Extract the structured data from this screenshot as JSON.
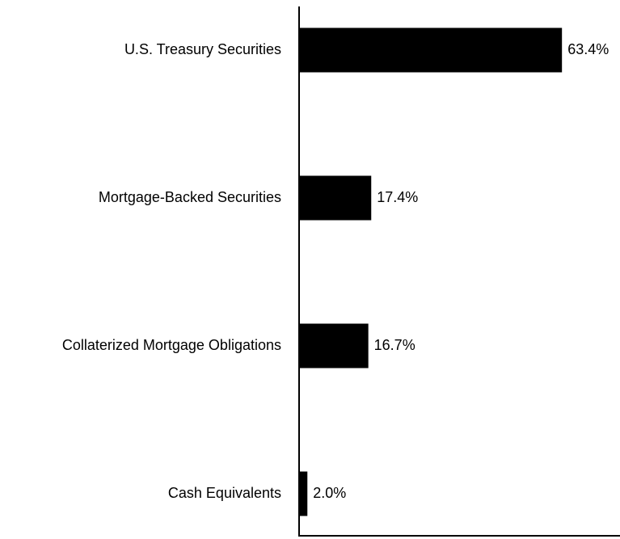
{
  "chart_data": {
    "type": "bar",
    "orientation": "horizontal",
    "categories": [
      "U.S. Treasury Securities",
      "Mortgage-Backed Securities",
      "Collaterized Mortgage Obligations",
      "Cash Equivalents"
    ],
    "values": [
      63.4,
      17.4,
      16.7,
      2.0
    ],
    "value_labels": [
      "63.4%",
      "17.4%",
      "16.7%",
      "2.0%"
    ],
    "color": "#000000",
    "xlim": [
      0,
      77.4
    ]
  }
}
